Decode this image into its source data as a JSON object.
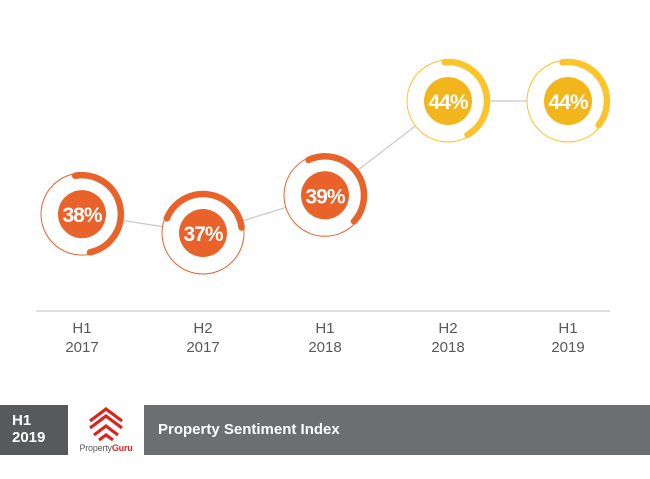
{
  "chart_data": {
    "type": "line",
    "categories": [
      {
        "line1": "H1",
        "line2": "2017"
      },
      {
        "line1": "H2",
        "line2": "2017"
      },
      {
        "line1": "H1",
        "line2": "2018"
      },
      {
        "line1": "H2",
        "line2": "2018"
      },
      {
        "line1": "H1",
        "line2": "2019"
      }
    ],
    "values": [
      38,
      37,
      39,
      44,
      44
    ],
    "value_labels": [
      "38%",
      "37%",
      "39%",
      "44%",
      "44%"
    ],
    "marker_colors": [
      "#e8622a",
      "#e8622a",
      "#e8622a",
      "#f2b51c",
      "#f2b51c"
    ],
    "ring_colors": [
      "#e8622a",
      "#e8622a",
      "#e8622a",
      "#fbc42b",
      "#fbc42b"
    ],
    "connector_color": "#c8c8c8",
    "baseline_color": "#bfbfbf",
    "grid": false,
    "legend": "none",
    "title": "",
    "xlabel": "",
    "ylabel": ""
  },
  "footer": {
    "period_line1": "H1",
    "period_line2": "2019",
    "logo_text_plain": "Property",
    "logo_text_bold": "Guru",
    "title": "Property Sentiment Index",
    "colors": {
      "period_bg": "#58595b",
      "title_bg": "#6d6e71",
      "logo_red": "#d9251c"
    }
  }
}
